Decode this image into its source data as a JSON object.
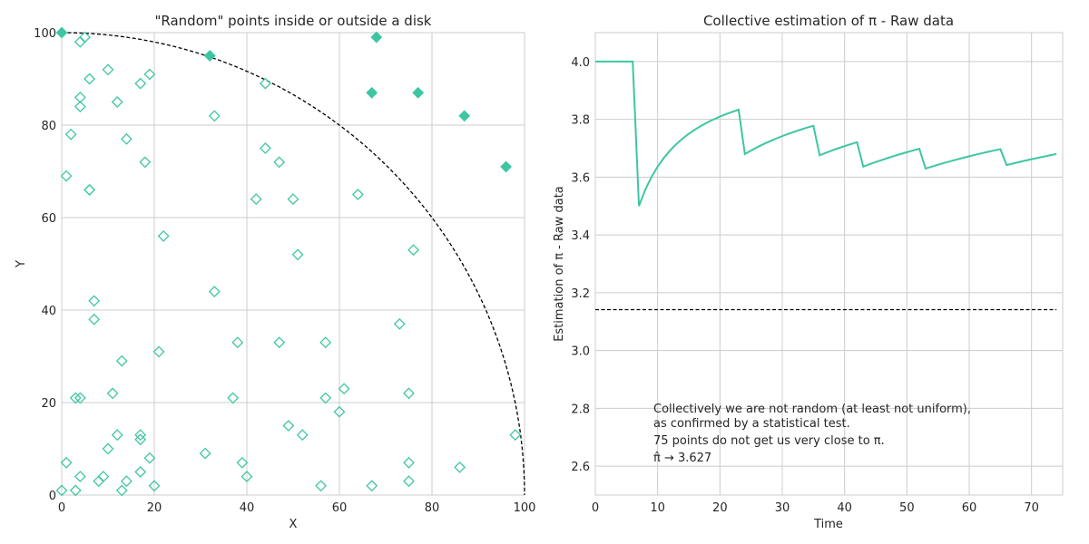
{
  "chart_data": [
    {
      "type": "scatter",
      "title": "\"Random\" points inside or outside a disk",
      "xlabel": "X",
      "ylabel": "Y",
      "xlim": [
        0,
        100
      ],
      "ylim": [
        0,
        100
      ],
      "xticks": [
        0,
        20,
        40,
        60,
        80,
        100
      ],
      "yticks": [
        0,
        20,
        40,
        60,
        80,
        100
      ],
      "grid": true,
      "color": "#3ec6a3",
      "reference_curve": "quarter circle of radius 100 (dashed black)",
      "series": [
        {
          "marker": "open-diamond",
          "points": [
            [
              0,
              1
            ],
            [
              1,
              7
            ],
            [
              1,
              69
            ],
            [
              2,
              78
            ],
            [
              3,
              21
            ],
            [
              3,
              1
            ],
            [
              4,
              21
            ],
            [
              4,
              4
            ],
            [
              4,
              86
            ],
            [
              4,
              84
            ],
            [
              4,
              98
            ],
            [
              5,
              99
            ],
            [
              6,
              90
            ],
            [
              6,
              66
            ],
            [
              6,
              66
            ],
            [
              7,
              42
            ],
            [
              7,
              38
            ],
            [
              8,
              3
            ],
            [
              9,
              4
            ],
            [
              10,
              10
            ],
            [
              10,
              92
            ],
            [
              11,
              22
            ],
            [
              12,
              13
            ],
            [
              12,
              85
            ],
            [
              13,
              29
            ],
            [
              13,
              1
            ],
            [
              14,
              3
            ],
            [
              14,
              77
            ],
            [
              17,
              5
            ],
            [
              17,
              12
            ],
            [
              17,
              13
            ],
            [
              17,
              89
            ],
            [
              18,
              72
            ],
            [
              19,
              8
            ],
            [
              19,
              91
            ],
            [
              20,
              2
            ],
            [
              21,
              31
            ],
            [
              22,
              56
            ],
            [
              31,
              9
            ],
            [
              33,
              44
            ],
            [
              33,
              82
            ],
            [
              37,
              21
            ],
            [
              38,
              33
            ],
            [
              39,
              7
            ],
            [
              40,
              4
            ],
            [
              42,
              64
            ],
            [
              44,
              89
            ],
            [
              44,
              75
            ],
            [
              47,
              33
            ],
            [
              47,
              72
            ],
            [
              49,
              15
            ],
            [
              50,
              64
            ],
            [
              51,
              52
            ],
            [
              52,
              13
            ],
            [
              56,
              2
            ],
            [
              57,
              33
            ],
            [
              57,
              21
            ],
            [
              60,
              18
            ],
            [
              61,
              23
            ],
            [
              64,
              65
            ],
            [
              67,
              2
            ],
            [
              73,
              37
            ],
            [
              75,
              3
            ],
            [
              75,
              7
            ],
            [
              75,
              22
            ],
            [
              76,
              53
            ],
            [
              86,
              6
            ],
            [
              98,
              13
            ]
          ]
        },
        {
          "marker": "filled-diamond",
          "points": [
            [
              0,
              100
            ],
            [
              32,
              95
            ],
            [
              67,
              87
            ],
            [
              68,
              99
            ],
            [
              77,
              87
            ],
            [
              87,
              82
            ],
            [
              96,
              71
            ]
          ]
        }
      ]
    },
    {
      "type": "line",
      "title": "Collective estimation of π - Raw data",
      "xlabel": "Time",
      "ylabel": "Estimation of π - Raw data",
      "xlim": [
        0,
        75
      ],
      "ylim": [
        2.5,
        4.1
      ],
      "xticks": [
        0,
        10,
        20,
        30,
        40,
        50,
        60,
        70
      ],
      "yticks": [
        2.6,
        2.8,
        3.0,
        3.2,
        3.4,
        3.6,
        3.8,
        4.0
      ],
      "grid": true,
      "color": "#3ec6a3",
      "x_range": [
        0,
        74
      ],
      "outside_times": [
        7,
        24,
        36,
        43,
        53,
        66
      ],
      "reference_line": {
        "y": 3.14159,
        "style": "dashed black"
      },
      "annotation": [
        "Collectively we are not random (at least not uniform),",
        "as confirmed by a statistical test.",
        "75 points do not get us very close to π.",
        "π̂ → 3.627"
      ]
    }
  ]
}
